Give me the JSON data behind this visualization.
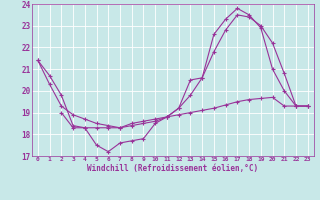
{
  "xlabel": "Windchill (Refroidissement éolien,°C)",
  "xlim": [
    -0.5,
    23.5
  ],
  "ylim": [
    17,
    24
  ],
  "yticks": [
    17,
    18,
    19,
    20,
    21,
    22,
    23,
    24
  ],
  "xticks": [
    0,
    1,
    2,
    3,
    4,
    5,
    6,
    7,
    8,
    9,
    10,
    11,
    12,
    13,
    14,
    15,
    16,
    17,
    18,
    19,
    20,
    21,
    22,
    23
  ],
  "bg_color": "#c8e8e8",
  "grid_color": "#b0d8d8",
  "line_color": "#993399",
  "line1_x": [
    0,
    1,
    2,
    3,
    4,
    5,
    6,
    7,
    8,
    9,
    10,
    11,
    12,
    13,
    14,
    15,
    16,
    17,
    18,
    19,
    20,
    21,
    22,
    23
  ],
  "line1_y": [
    21.4,
    20.7,
    19.8,
    18.4,
    18.3,
    17.5,
    17.2,
    17.6,
    17.7,
    17.8,
    18.5,
    18.8,
    19.2,
    20.5,
    20.6,
    22.6,
    23.3,
    23.8,
    23.5,
    22.9,
    21.0,
    20.0,
    19.3,
    19.3
  ],
  "line2_x": [
    2,
    3,
    4,
    5,
    6,
    7,
    8,
    9,
    10,
    11,
    12,
    13,
    14,
    15,
    16,
    17,
    18,
    19,
    20,
    21,
    22,
    23
  ],
  "line2_y": [
    19.0,
    18.3,
    18.3,
    18.3,
    18.3,
    18.3,
    18.5,
    18.6,
    18.7,
    18.8,
    18.9,
    19.0,
    19.1,
    19.2,
    19.35,
    19.5,
    19.6,
    19.65,
    19.7,
    19.3,
    19.3,
    19.3
  ],
  "line3_x": [
    0,
    1,
    2,
    3,
    4,
    5,
    6,
    7,
    8,
    9,
    10,
    11,
    12,
    13,
    14,
    15,
    16,
    17,
    18,
    19,
    20,
    21,
    22,
    23
  ],
  "line3_y": [
    21.4,
    20.3,
    19.3,
    18.9,
    18.7,
    18.5,
    18.4,
    18.3,
    18.4,
    18.5,
    18.6,
    18.8,
    19.2,
    19.8,
    20.6,
    21.8,
    22.8,
    23.5,
    23.4,
    23.0,
    22.2,
    20.8,
    19.3,
    19.3
  ]
}
